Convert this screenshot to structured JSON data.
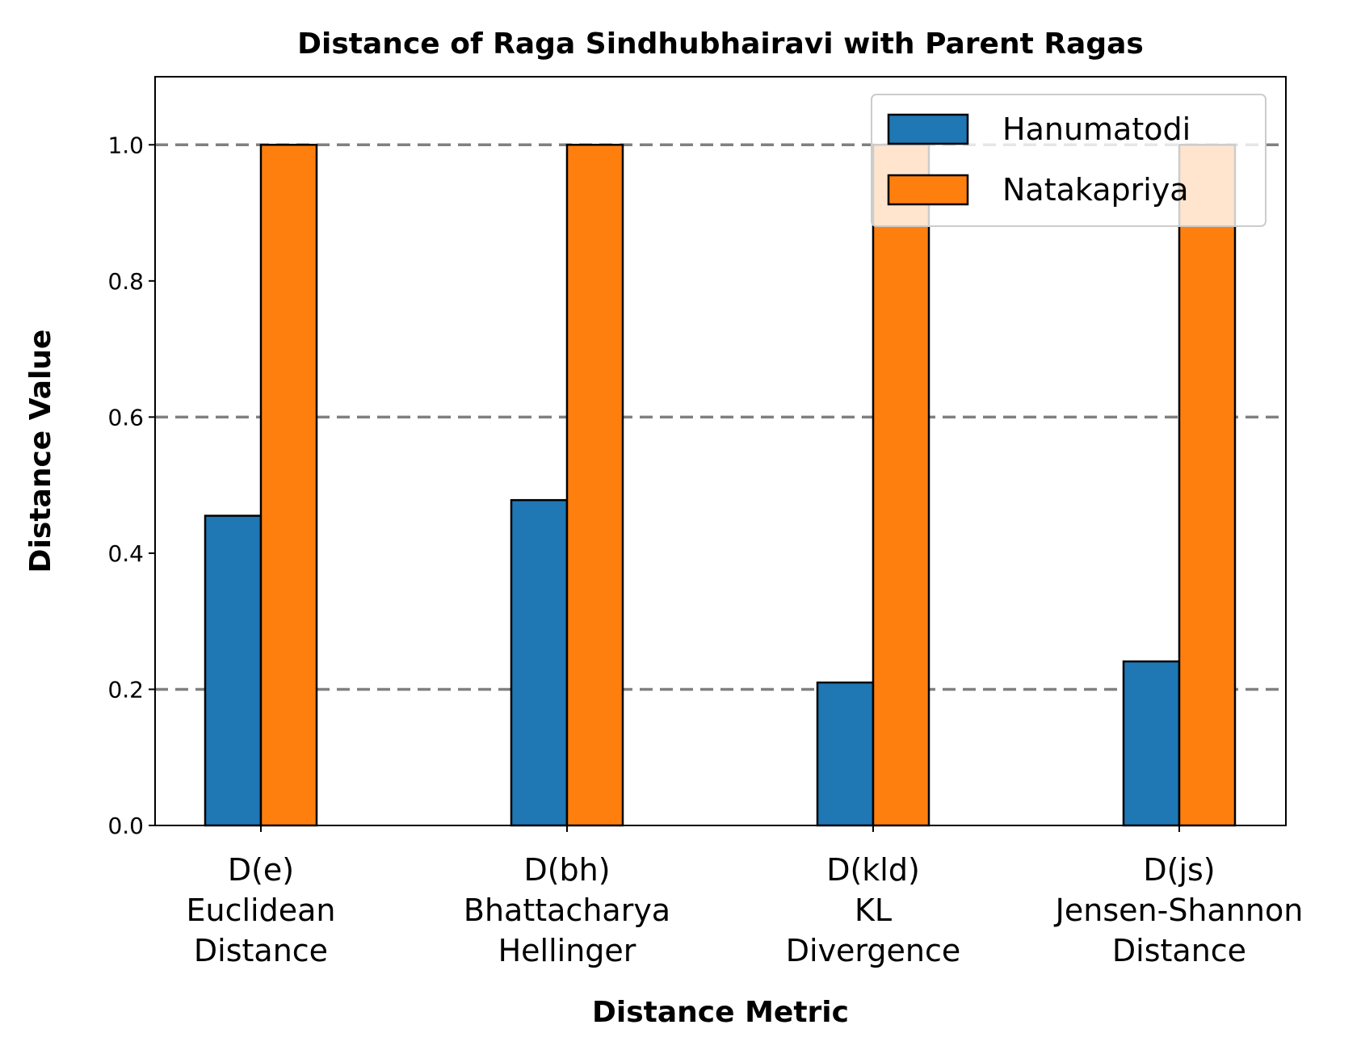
{
  "chart_data": {
    "type": "bar",
    "title": "Distance of Raga Sindhubhairavi with Parent Ragas",
    "xlabel": "Distance Metric",
    "ylabel": "Distance Value",
    "ylim": [
      0,
      1.1
    ],
    "yticks": [
      "0.0",
      "0.2",
      "0.4",
      "0.6",
      "0.8",
      "1.0"
    ],
    "grid": "horizontal dashed at 0.2, 0.6, 1.0",
    "legend_position": "top-right",
    "categories": [
      [
        "D(e)",
        "Euclidean",
        "Distance"
      ],
      [
        "D(bh)",
        "Bhattacharya",
        "Hellinger"
      ],
      [
        "D(kld)",
        "KL",
        "Divergence"
      ],
      [
        "D(js)",
        "Jensen-Shannon",
        "Distance"
      ]
    ],
    "series": [
      {
        "name": "Hanumatodi",
        "color": "#1f77b4",
        "values": [
          0.455,
          0.478,
          0.21,
          0.241
        ]
      },
      {
        "name": "Natakapriya",
        "color": "#ff7f0e",
        "values": [
          1.0,
          1.0,
          1.0,
          1.0
        ]
      }
    ],
    "grid_color": "#808080"
  }
}
